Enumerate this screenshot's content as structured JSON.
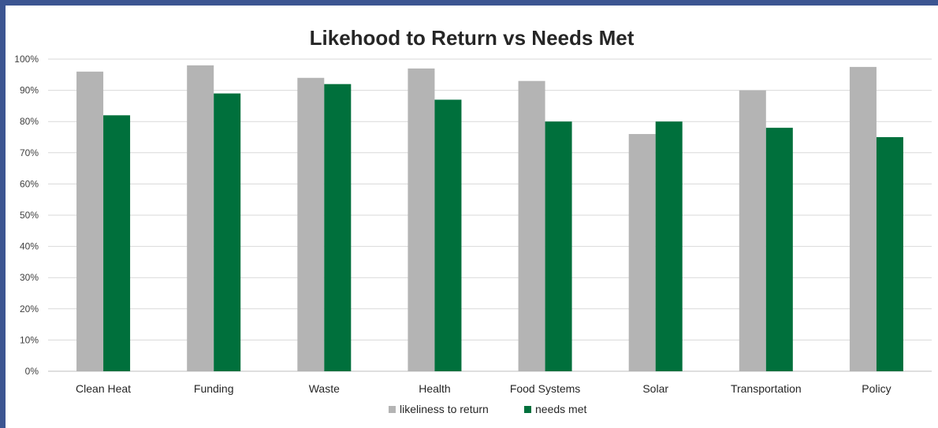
{
  "chart_data": {
    "type": "bar",
    "title": "Likehood to Return vs Needs Met",
    "categories": [
      "Clean Heat",
      "Funding",
      "Waste",
      "Health",
      "Food Systems",
      "Solar",
      "Transportation",
      "Policy"
    ],
    "series": [
      {
        "name": "likeliness to return",
        "color": "#b4b4b4",
        "values": [
          96,
          98,
          94,
          97,
          93,
          76,
          90,
          97.5
        ]
      },
      {
        "name": "needs met",
        "color": "#00703c",
        "values": [
          82,
          89,
          92,
          87,
          80,
          80,
          78,
          75
        ]
      }
    ],
    "yticks": [
      "0%",
      "10%",
      "20%",
      "30%",
      "40%",
      "50%",
      "60%",
      "70%",
      "80%",
      "90%",
      "100%"
    ],
    "ylim": [
      0,
      100
    ],
    "grid": true,
    "legend": "bottom"
  }
}
